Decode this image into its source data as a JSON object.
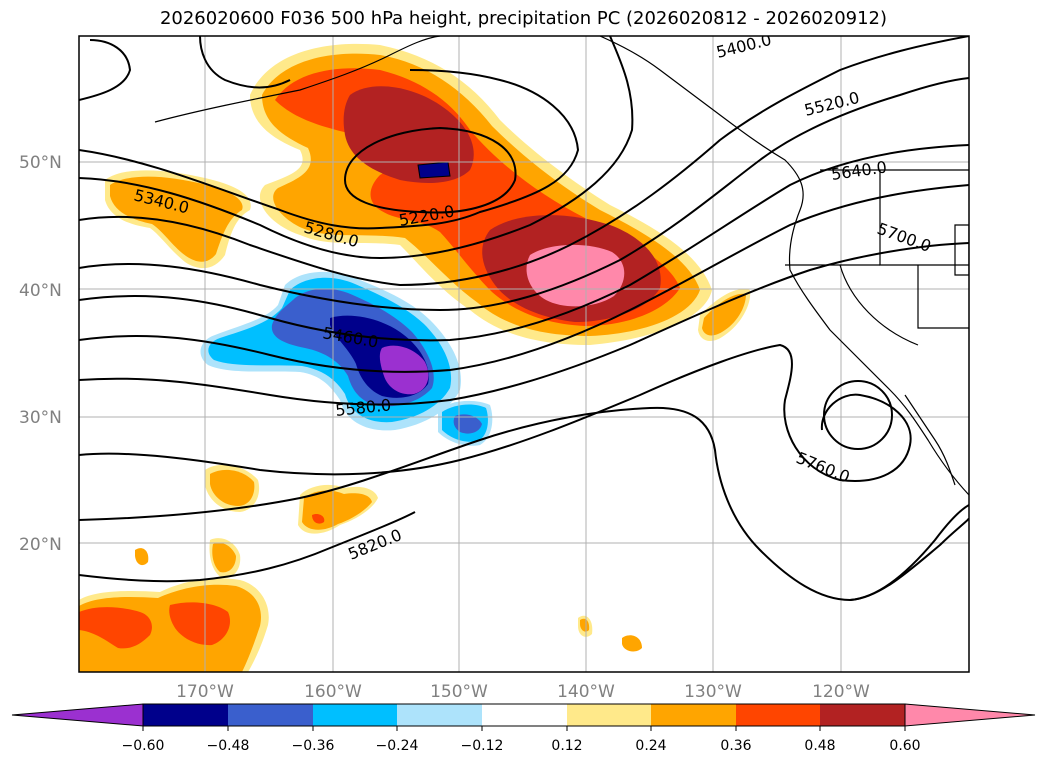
{
  "title": "2026020600 F036 500 hPa height, precipitation PC (2026020812 - 2026020912)",
  "lat_labels": [
    "50°N",
    "40°N",
    "30°N",
    "20°N"
  ],
  "lon_labels": [
    "170°W",
    "160°W",
    "150°W",
    "140°W",
    "130°W",
    "120°W"
  ],
  "contour_labels": [
    "5400.0",
    "5520.0",
    "5640.0",
    "5700.0",
    "5340.0",
    "5220.0",
    "5280.0",
    "5460.0",
    "5580.0",
    "5760.0",
    "5820.0"
  ],
  "colorbar": {
    "ticks": [
      "−0.60",
      "−0.48",
      "−0.36",
      "−0.24",
      "−0.12",
      "0.12",
      "0.24",
      "0.36",
      "0.48",
      "0.60"
    ],
    "colors": [
      "#9b30d0",
      "#00008b",
      "#3a5fcd",
      "#00bfff",
      "#ade3fb",
      "#ffffff",
      "#ffe98a",
      "#ffa500",
      "#ff4500",
      "#b22222",
      "#ff88aa"
    ]
  },
  "palette": {
    "gold": "#ffa500",
    "orange_red": "#ff4500",
    "firebrick": "#b22222",
    "pink": "#ff88aa",
    "light_yellow": "#ffe98a",
    "deep_sky_blue": "#00bfff",
    "royal_blue": "#3a5fcd",
    "navy": "#00008b",
    "purple": "#9b30d0",
    "light_blue": "#ade3fb"
  }
}
